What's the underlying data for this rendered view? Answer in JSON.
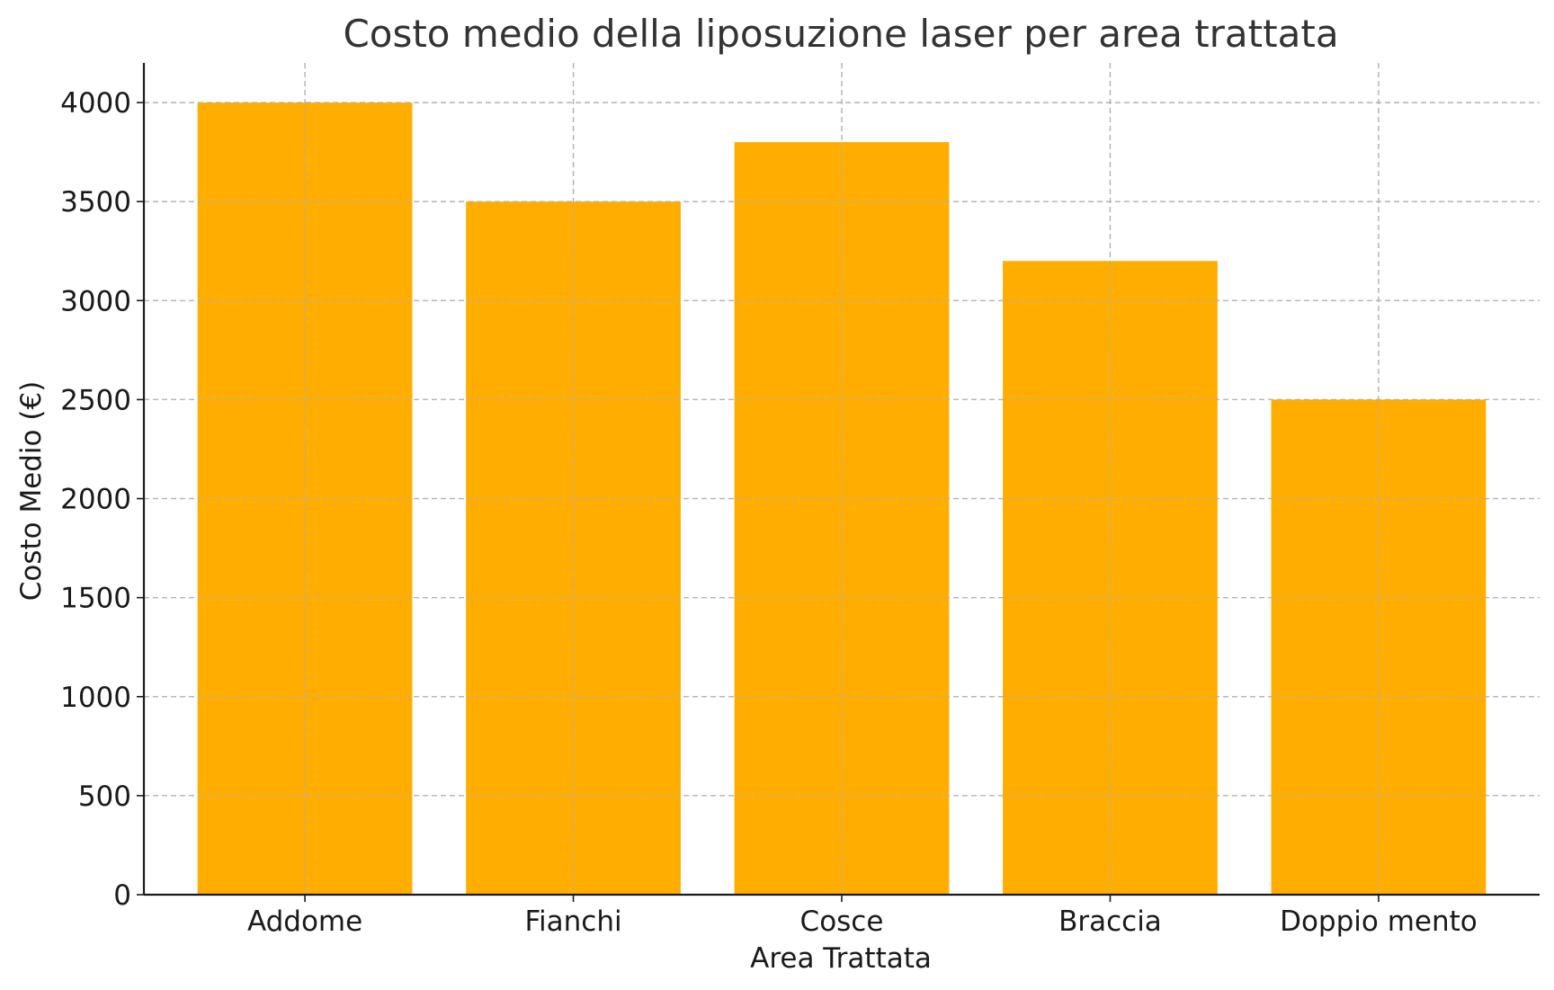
{
  "chart_data": {
    "type": "bar",
    "title": "Costo medio della liposuzione laser per area trattata",
    "xlabel": "Area Trattata",
    "ylabel": "Costo Medio (€)",
    "categories": [
      "Addome",
      "Fianchi",
      "Cosce",
      "Braccia",
      "Doppio mento"
    ],
    "values": [
      4000,
      3500,
      3800,
      3200,
      2500
    ],
    "ylim": [
      0,
      4200
    ],
    "yticks": [
      0,
      500,
      1000,
      1500,
      2000,
      2500,
      3000,
      3500,
      4000
    ],
    "grid": true,
    "legend": "none",
    "bar_color": "#FFAE00"
  }
}
